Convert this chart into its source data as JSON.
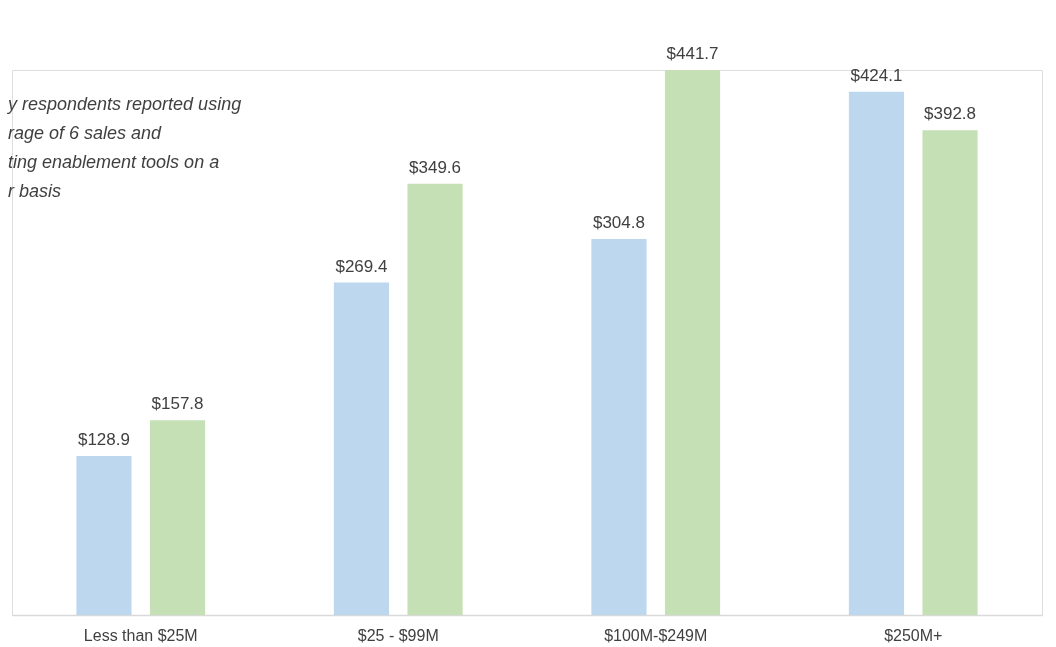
{
  "chart_data": {
    "type": "bar",
    "categories": [
      "Less than $25M",
      "$25 - $99M",
      "$100M-$249M",
      "$250M+"
    ],
    "series": [
      {
        "color": "#bdd7ee",
        "values": [
          128.9,
          269.4,
          304.8,
          424.1
        ],
        "value_labels": [
          "$128.9",
          "$269.4",
          "$304.8",
          "$424.1"
        ]
      },
      {
        "color": "#c5e0b4",
        "values": [
          157.8,
          349.6,
          441.7,
          392.8
        ],
        "value_labels": [
          "$157.8",
          "$349.6",
          "$441.7",
          "$392.8"
        ]
      }
    ],
    "annotations": [
      "y respondents reported using\nrage of 6 sales and\nting enablement tools on a\nr basis"
    ],
    "legend": false,
    "grid": false
  }
}
